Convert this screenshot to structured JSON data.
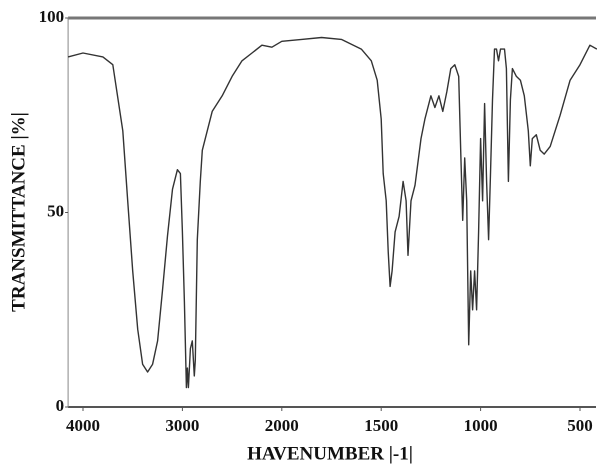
{
  "chart_data": {
    "type": "line",
    "xlabel": "HAVENUMBER |-1|",
    "ylabel": "TRANSMITTANCE |%|",
    "x": [
      4150,
      4000,
      3800,
      3700,
      3600,
      3550,
      3500,
      3450,
      3400,
      3350,
      3300,
      3250,
      3200,
      3150,
      3100,
      3050,
      3020,
      3000,
      2980,
      2960,
      2950,
      2940,
      2920,
      2900,
      2880,
      2870,
      2850,
      2820,
      2800,
      2700,
      2600,
      2500,
      2400,
      2300,
      2200,
      2100,
      2000,
      1900,
      1800,
      1700,
      1600,
      1550,
      1520,
      1500,
      1490,
      1475,
      1465,
      1455,
      1445,
      1430,
      1410,
      1390,
      1375,
      1365,
      1350,
      1330,
      1300,
      1280,
      1250,
      1230,
      1210,
      1190,
      1170,
      1150,
      1130,
      1110,
      1100,
      1090,
      1080,
      1070,
      1060,
      1050,
      1040,
      1030,
      1020,
      1010,
      1000,
      990,
      980,
      970,
      960,
      950,
      940,
      930,
      920,
      910,
      900,
      880,
      870,
      860,
      850,
      840,
      820,
      800,
      780,
      760,
      750,
      740,
      720,
      700,
      680,
      650,
      600,
      550,
      500,
      450,
      415
    ],
    "values": [
      90,
      91,
      90,
      88,
      71,
      53,
      35,
      20,
      11,
      9,
      11,
      17,
      30,
      44,
      56,
      61,
      60,
      45,
      27,
      5,
      10,
      5,
      15,
      17,
      8,
      12,
      43,
      58,
      66,
      76,
      80,
      85,
      89,
      91,
      93,
      92.5,
      94,
      94.5,
      95,
      94.5,
      92,
      89,
      84,
      74,
      60,
      53,
      40,
      31,
      35,
      45,
      49,
      58,
      53,
      39,
      53,
      57,
      69,
      74,
      80,
      77,
      80,
      76,
      81,
      87,
      88,
      85,
      66,
      48,
      64,
      53,
      16,
      35,
      25,
      35,
      25,
      45,
      69,
      53,
      78,
      58,
      43,
      60,
      79,
      92,
      92,
      89,
      92,
      92,
      87,
      58,
      79,
      87,
      85,
      84,
      80,
      71,
      62,
      69,
      70,
      66,
      65,
      67,
      75,
      84,
      88,
      93,
      92
    ],
    "color": "#333333",
    "xlim": [
      4150,
      415
    ],
    "xticks": [
      4000,
      3000,
      2000,
      1500,
      1000,
      500
    ],
    "ylim": [
      0,
      100
    ],
    "yticks": [
      0,
      50,
      100
    ]
  }
}
